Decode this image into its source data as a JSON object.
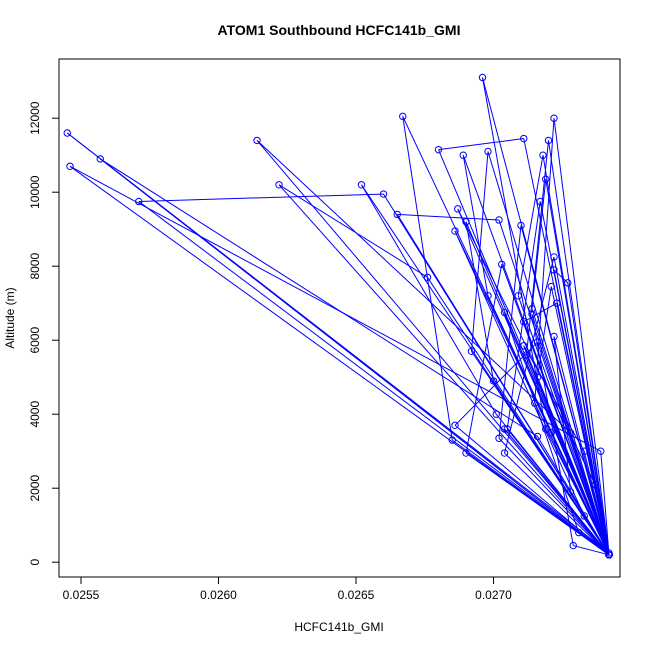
{
  "chart_data": {
    "type": "line",
    "title": "ATOM1 Southbound HCFC141b_GMI",
    "xlabel": "HCFC141b_GMI",
    "ylabel": "Altitude (m)",
    "xlim": [
      0.02542,
      0.02746
    ],
    "ylim": [
      -400,
      13600
    ],
    "x_ticks": [
      0.0255,
      0.026,
      0.0265,
      0.027
    ],
    "x_tick_labels": [
      "0.0255",
      "0.0260",
      "0.0265",
      "0.0270"
    ],
    "y_ticks": [
      0,
      2000,
      4000,
      6000,
      8000,
      10000,
      12000
    ],
    "y_tick_labels": [
      "0",
      "2000",
      "4000",
      "6000",
      "8000",
      "10000",
      "12000"
    ],
    "grid": false,
    "series": [
      {
        "name": "HCFC141b_GMI",
        "color": "#0000ff",
        "marker": "open-circle",
        "points": [
          [
            0.02742,
            200
          ],
          [
            0.02696,
            13100
          ],
          [
            0.02719,
            3600
          ],
          [
            0.02742,
            250
          ],
          [
            0.02545,
            11600
          ],
          [
            0.02742,
            200
          ],
          [
            0.02722,
            12000
          ],
          [
            0.02715,
            4300
          ],
          [
            0.02742,
            200
          ],
          [
            0.02667,
            12050
          ],
          [
            0.02685,
            3300
          ],
          [
            0.02742,
            200
          ],
          [
            0.02711,
            11450
          ],
          [
            0.0268,
            11150
          ],
          [
            0.02742,
            200
          ],
          [
            0.02614,
            11400
          ],
          [
            0.02728,
            3500
          ],
          [
            0.02742,
            200
          ],
          [
            0.02546,
            10700
          ],
          [
            0.02739,
            3000
          ],
          [
            0.02742,
            200
          ],
          [
            0.02557,
            10900
          ],
          [
            0.02716,
            3400
          ],
          [
            0.02742,
            200
          ],
          [
            0.02622,
            10200
          ],
          [
            0.02676,
            7700
          ],
          [
            0.02742,
            200
          ],
          [
            0.02571,
            9750
          ],
          [
            0.0266,
            9950
          ],
          [
            0.02742,
            200
          ],
          [
            0.02652,
            10200
          ],
          [
            0.02701,
            4000
          ],
          [
            0.02742,
            200
          ],
          [
            0.02698,
            11100
          ],
          [
            0.02692,
            5700
          ],
          [
            0.02742,
            200
          ],
          [
            0.02689,
            11000
          ],
          [
            0.02698,
            7200
          ],
          [
            0.02742,
            200
          ],
          [
            0.02665,
            9400
          ],
          [
            0.02702,
            9250
          ],
          [
            0.02742,
            200
          ],
          [
            0.0272,
            11400
          ],
          [
            0.02712,
            5600
          ],
          [
            0.02742,
            200
          ],
          [
            0.02717,
            9750
          ],
          [
            0.02705,
            3600
          ],
          [
            0.02742,
            200
          ],
          [
            0.02687,
            9550
          ],
          [
            0.02737,
            2100
          ],
          [
            0.02742,
            200
          ],
          [
            0.0269,
            9200
          ],
          [
            0.027,
            4900
          ],
          [
            0.02742,
            200
          ],
          [
            0.02686,
            8950
          ],
          [
            0.02733,
            1250
          ],
          [
            0.02742,
            200
          ],
          [
            0.02718,
            11000
          ],
          [
            0.02709,
            7200
          ],
          [
            0.02742,
            200
          ],
          [
            0.0271,
            9100
          ],
          [
            0.02702,
            3350
          ],
          [
            0.02742,
            200
          ],
          [
            0.02722,
            8250
          ],
          [
            0.02704,
            2950
          ],
          [
            0.02742,
            200
          ],
          [
            0.02703,
            8050
          ],
          [
            0.0269,
            2950
          ],
          [
            0.02742,
            200
          ],
          [
            0.02727,
            7550
          ],
          [
            0.02722,
            7900
          ],
          [
            0.02742,
            200
          ],
          [
            0.02719,
            10350
          ],
          [
            0.02714,
            6850
          ],
          [
            0.02742,
            200
          ],
          [
            0.02721,
            7450
          ],
          [
            0.02716,
            5000
          ],
          [
            0.02742,
            200
          ],
          [
            0.02723,
            7000
          ],
          [
            0.02711,
            6500
          ],
          [
            0.02742,
            200
          ],
          [
            0.02711,
            5850
          ],
          [
            0.02733,
            3000
          ],
          [
            0.02742,
            200
          ],
          [
            0.02716,
            5950
          ],
          [
            0.02686,
            3700
          ],
          [
            0.02742,
            200
          ],
          [
            0.02722,
            6100
          ],
          [
            0.02728,
            1900
          ],
          [
            0.02742,
            200
          ],
          [
            0.02714,
            6700
          ],
          [
            0.02729,
            450
          ],
          [
            0.02742,
            200
          ],
          [
            0.02704,
            6750
          ],
          [
            0.02731,
            800
          ],
          [
            0.02742,
            200
          ],
          [
            0.02721,
            3500
          ],
          [
            0.02742,
            200
          ],
          [
            0.02704,
            3600
          ],
          [
            0.02742,
            200
          ]
        ]
      }
    ]
  }
}
